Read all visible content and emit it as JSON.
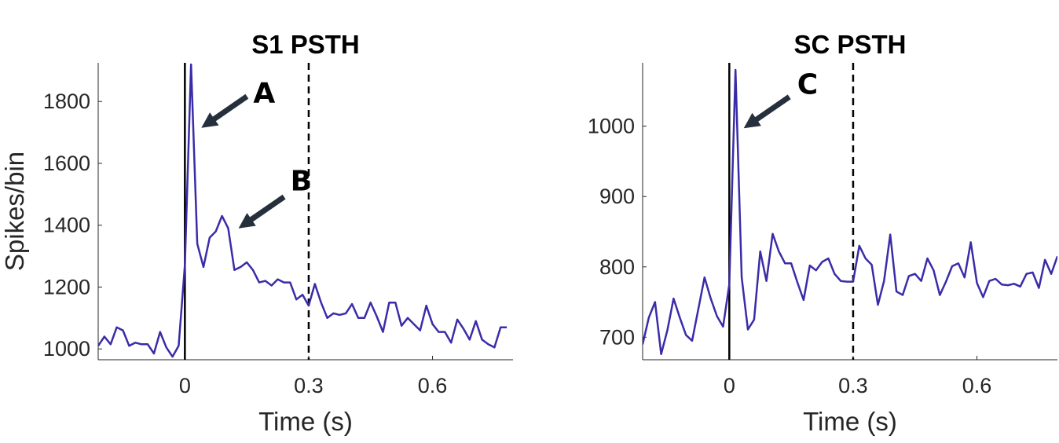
{
  "colors": {
    "series": "#3a2ca8",
    "arrow": "#26303c"
  },
  "chart_data": [
    {
      "type": "line",
      "title": "S1 PSTH",
      "xlabel": "Time (s)",
      "ylabel": "Spikes/bin",
      "xlim": [
        -0.21,
        0.795
      ],
      "ylim": [
        965,
        1925
      ],
      "xticks": [
        0,
        0.3,
        0.6
      ],
      "xtick_labels": [
        "0",
        "0.3",
        "0.6"
      ],
      "yticks": [
        1000,
        1200,
        1400,
        1600,
        1800
      ],
      "ytick_labels": [
        "1000",
        "1200",
        "1400",
        "1600",
        "1800"
      ],
      "vlines": [
        {
          "x": 0,
          "style": "solid"
        },
        {
          "x": 0.3,
          "style": "dashed"
        }
      ],
      "annotations": [
        {
          "text": "A",
          "target": [
            0.04,
            1715
          ]
        },
        {
          "text": "B",
          "target": [
            0.13,
            1390
          ]
        }
      ],
      "series": [
        {
          "x": [
            -0.21,
            -0.195,
            -0.18,
            -0.165,
            -0.15,
            -0.135,
            -0.12,
            -0.105,
            -0.09,
            -0.075,
            -0.06,
            -0.045,
            -0.03,
            -0.015,
            0,
            0.015,
            0.03,
            0.045,
            0.06,
            0.075,
            0.09,
            0.105,
            0.12,
            0.135,
            0.15,
            0.165,
            0.18,
            0.195,
            0.21,
            0.225,
            0.24,
            0.255,
            0.27,
            0.285,
            0.3,
            0.315,
            0.33,
            0.345,
            0.36,
            0.375,
            0.39,
            0.405,
            0.42,
            0.435,
            0.45,
            0.465,
            0.48,
            0.495,
            0.51,
            0.525,
            0.54,
            0.555,
            0.57,
            0.585,
            0.6,
            0.615,
            0.63,
            0.645,
            0.66,
            0.675,
            0.69,
            0.705,
            0.72,
            0.735,
            0.75,
            0.765,
            0.78
          ],
          "values": [
            1010,
            1040,
            1015,
            1070,
            1060,
            1010,
            1020,
            1015,
            1015,
            985,
            1055,
            1005,
            975,
            1010,
            1270,
            1920,
            1340,
            1265,
            1360,
            1380,
            1430,
            1390,
            1255,
            1265,
            1280,
            1255,
            1215,
            1220,
            1205,
            1225,
            1215,
            1215,
            1160,
            1175,
            1140,
            1210,
            1150,
            1100,
            1115,
            1110,
            1115,
            1145,
            1100,
            1100,
            1150,
            1105,
            1055,
            1150,
            1150,
            1075,
            1100,
            1080,
            1060,
            1140,
            1080,
            1055,
            1055,
            1020,
            1095,
            1065,
            1030,
            1090,
            1030,
            1015,
            1005,
            1070,
            1070
          ]
        }
      ]
    },
    {
      "type": "line",
      "title": "SC PSTH",
      "xlabel": "Time (s)",
      "ylabel": "",
      "xlim": [
        -0.21,
        0.795
      ],
      "ylim": [
        668,
        1090
      ],
      "xticks": [
        0,
        0.3,
        0.6
      ],
      "xtick_labels": [
        "0",
        "0.3",
        "0.6"
      ],
      "yticks": [
        700,
        800,
        900,
        1000
      ],
      "ytick_labels": [
        "700",
        "800",
        "900",
        "1000"
      ],
      "vlines": [
        {
          "x": 0,
          "style": "solid"
        },
        {
          "x": 0.3,
          "style": "dashed"
        }
      ],
      "annotations": [
        {
          "text": "C",
          "target": [
            0.035,
            997
          ]
        }
      ],
      "series": [
        {
          "x": [
            -0.21,
            -0.195,
            -0.18,
            -0.165,
            -0.15,
            -0.135,
            -0.12,
            -0.105,
            -0.09,
            -0.075,
            -0.06,
            -0.045,
            -0.03,
            -0.015,
            0,
            0.015,
            0.03,
            0.045,
            0.06,
            0.075,
            0.09,
            0.105,
            0.12,
            0.135,
            0.15,
            0.165,
            0.18,
            0.195,
            0.21,
            0.225,
            0.24,
            0.255,
            0.27,
            0.285,
            0.3,
            0.315,
            0.33,
            0.345,
            0.36,
            0.375,
            0.39,
            0.405,
            0.42,
            0.435,
            0.45,
            0.465,
            0.48,
            0.495,
            0.51,
            0.525,
            0.54,
            0.555,
            0.57,
            0.585,
            0.6,
            0.615,
            0.63,
            0.645,
            0.66,
            0.675,
            0.69,
            0.705,
            0.72,
            0.735,
            0.75,
            0.765,
            0.78,
            0.795
          ],
          "values": [
            690,
            728,
            750,
            676,
            710,
            755,
            728,
            703,
            695,
            740,
            785,
            755,
            730,
            715,
            775,
            1080,
            785,
            711,
            725,
            822,
            780,
            847,
            822,
            805,
            805,
            778,
            753,
            802,
            795,
            807,
            812,
            790,
            780,
            779,
            779,
            830,
            812,
            803,
            746,
            780,
            846,
            765,
            760,
            787,
            790,
            780,
            812,
            795,
            760,
            779,
            801,
            805,
            785,
            835,
            777,
            757,
            780,
            783,
            775,
            774,
            776,
            772,
            790,
            792,
            770,
            810,
            790,
            815
          ]
        }
      ]
    }
  ]
}
